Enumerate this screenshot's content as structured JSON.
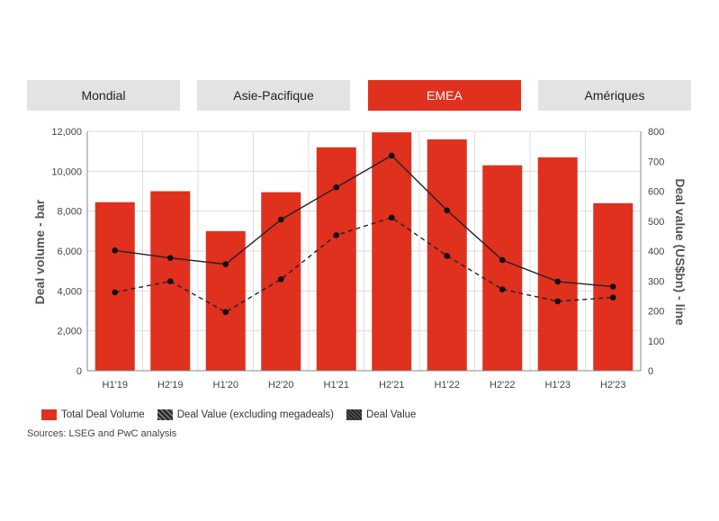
{
  "tabs": [
    {
      "label": "Mondial",
      "active": false
    },
    {
      "label": "Asie-Pacifique",
      "active": false
    },
    {
      "label": "EMEA",
      "active": true
    },
    {
      "label": "Amériques",
      "active": false
    }
  ],
  "colors": {
    "bar": "#e0301e",
    "tab_active": "#e0301e",
    "tab_inactive": "#e3e3e3",
    "line": "#222222"
  },
  "chart_data": {
    "type": "bar",
    "categories": [
      "H1'19",
      "H2'19",
      "H1'20",
      "H2'20",
      "H1'21",
      "H2'21",
      "H1'22",
      "H2'22",
      "H1'23",
      "H2'23"
    ],
    "ylabel": "Deal volume - bar",
    "y2label": "Deal value (US$bn) - line",
    "ylim": [
      0,
      12000
    ],
    "y2lim": [
      0,
      800
    ],
    "yticks": [
      "0",
      "2,000",
      "4,000",
      "6,000",
      "8,000",
      "10,000",
      "12,000"
    ],
    "y2ticks": [
      "0",
      "100",
      "200",
      "300",
      "400",
      "500",
      "600",
      "700",
      "800"
    ],
    "series": [
      {
        "name": "Total Deal Volume",
        "type": "bar",
        "axis": "left",
        "values": [
          8450,
          9000,
          7000,
          8950,
          11200,
          11950,
          11600,
          10300,
          10700,
          8400
        ]
      },
      {
        "name": "Deal Value (excluding megadeals)",
        "type": "line",
        "style": "dashed",
        "axis": "right",
        "values": [
          262,
          299,
          196,
          306,
          453,
          512,
          384,
          272,
          232,
          245
        ]
      },
      {
        "name": "Deal Value",
        "type": "line",
        "style": "solid",
        "axis": "right",
        "values": [
          402,
          377,
          356,
          505,
          613,
          719,
          536,
          370,
          298,
          281
        ]
      }
    ],
    "legend_position": "bottom-left",
    "grid": true
  },
  "legend": [
    {
      "label": "Total Deal Volume"
    },
    {
      "label": "Deal Value (excluding megadeals)"
    },
    {
      "label": "Deal Value"
    }
  ],
  "source": "Sources: LSEG and PwC analysis"
}
